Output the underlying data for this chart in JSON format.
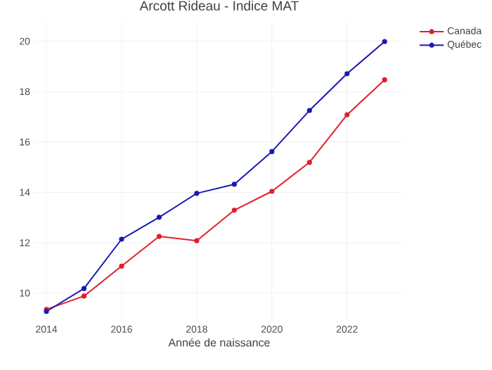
{
  "chart_data": {
    "type": "line",
    "title": "Arcott Rideau - Indice MAT",
    "xlabel": "Année de naissance",
    "x": [
      2014,
      2015,
      2016,
      2017,
      2018,
      2019,
      2020,
      2021,
      2022,
      2023
    ],
    "series": [
      {
        "name": "Canada",
        "color": "#e0202a",
        "values": [
          9.35,
          9.88,
          11.07,
          12.25,
          12.08,
          13.29,
          14.04,
          15.19,
          17.08,
          18.47
        ]
      },
      {
        "name": "Québec",
        "color": "#1a1ab4",
        "values": [
          9.27,
          10.18,
          12.14,
          13.01,
          13.96,
          14.32,
          15.62,
          17.25,
          18.71,
          19.99
        ]
      }
    ],
    "xlim": [
      2013.7,
      2023.5
    ],
    "ylim": [
      8.9,
      20.8
    ],
    "xticks": [
      2014,
      2016,
      2018,
      2020,
      2022
    ],
    "yticks": [
      10,
      12,
      14,
      16,
      18,
      20
    ],
    "grid": true,
    "legend": "top right",
    "marker": "circle",
    "line_style": "solid"
  }
}
